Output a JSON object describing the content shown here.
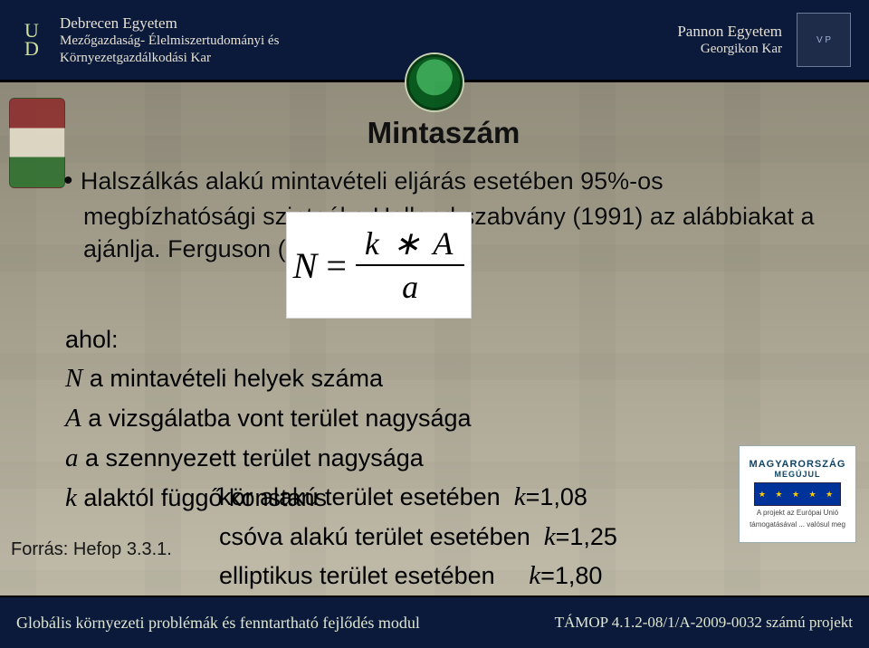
{
  "header": {
    "left": {
      "monogram_top": "U",
      "monogram_bottom": "D",
      "line1": "Debrecen Egyetem",
      "line2": "Mezőgazdaság- Élelmiszertudományi és",
      "line3": "Környezetgazdálkodási Kar"
    },
    "right": {
      "line1": "Pannon Egyetem",
      "line2": "Georgikon Kar",
      "logo_text": "V P"
    }
  },
  "title": "Mintaszám",
  "bullet_text": "Halszálkás alakú mintavételi eljárás esetében 95%-os megbízhatósági szintnél a Holland szabvány (1991) az alábbiakat a ajánlja. Ferguson (1992)",
  "formula": {
    "lhs": "N",
    "eq": "=",
    "numerator": "k ∗ A",
    "denominator": "a"
  },
  "ahol_label": "ahol:",
  "defs": {
    "N": "N a mintavételi helyek száma",
    "A": "A a vizsgálatba vont terület nagysága",
    "a": "a a szennyezett terület nagysága",
    "k": "k alaktól függő konstans"
  },
  "kvalues": {
    "circle": {
      "label": "kör alakú terület esetében",
      "var": "k",
      "val": "=1,08"
    },
    "tube": {
      "label": "csóva alakú terület esetében",
      "var": "k",
      "val": "=1,25"
    },
    "ellipse": {
      "label": "elliptikus terület esetében",
      "var": "k",
      "val": "=1,80"
    }
  },
  "source_label": "Forrás: Hefop 3.3.1.",
  "badge": {
    "title": "MAGYARORSZÁG",
    "subtitle": "MEGÚJUL",
    "proj_line1": "A projekt az Európai Unió",
    "proj_line2": "támogatásával ... valósul meg"
  },
  "footer": {
    "left": "Globális környezeti problémák és fenntartható fejlődés modul",
    "right": "TÁMOP 4.1.2-08/1/A-2009-0032 számú projekt"
  },
  "colors": {
    "header_bg": "#0b1a3a",
    "text": "#0b0b0b",
    "formula_bg": "#ffffff"
  }
}
